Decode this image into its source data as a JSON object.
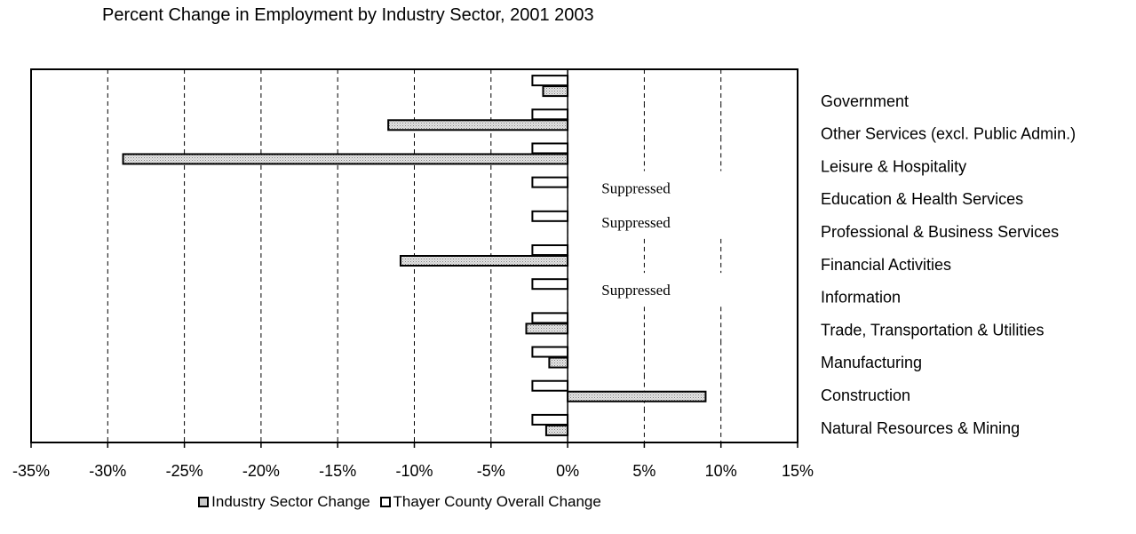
{
  "chart_data": {
    "type": "bar",
    "orientation": "horizontal",
    "title": "Percent Change in Employment by Industry Sector, 2001  2003",
    "xlim": [
      -35,
      15
    ],
    "x_ticks": [
      "-35%",
      "-30%",
      "-25%",
      "-20%",
      "-15%",
      "-10%",
      "-5%",
      "0%",
      "5%",
      "10%",
      "15%"
    ],
    "x_tick_values": [
      -35,
      -30,
      -25,
      -20,
      -15,
      -10,
      -5,
      0,
      5,
      10,
      15
    ],
    "grid": "vertical dashed",
    "legend_position": "bottom",
    "categories": [
      "Government",
      "Other Services (excl. Public Admin.)",
      "Leisure & Hospitality",
      "Education & Health Services",
      "Professional & Business Services",
      "Financial Activities",
      "Information",
      "Trade, Transportation & Utilities",
      "Manufacturing",
      "Construction",
      "Natural Resources & Mining"
    ],
    "series": [
      {
        "name": "Industry Sector Change",
        "color": "#c8c8c8",
        "values": [
          -1.6,
          -11.7,
          -29.0,
          null,
          null,
          -10.9,
          null,
          -2.7,
          -1.2,
          9.0,
          -1.4
        ]
      },
      {
        "name": "Thayer County Overall Change",
        "color": "#ffffff",
        "values": [
          -2.3,
          -2.3,
          -2.3,
          -2.3,
          -2.3,
          -2.3,
          -2.3,
          -2.3,
          -2.3,
          -2.3,
          -2.3
        ]
      }
    ],
    "annotations": [
      "Suppressed",
      "Suppressed",
      "Suppressed"
    ],
    "annotation_rows": [
      3,
      4,
      6
    ]
  }
}
